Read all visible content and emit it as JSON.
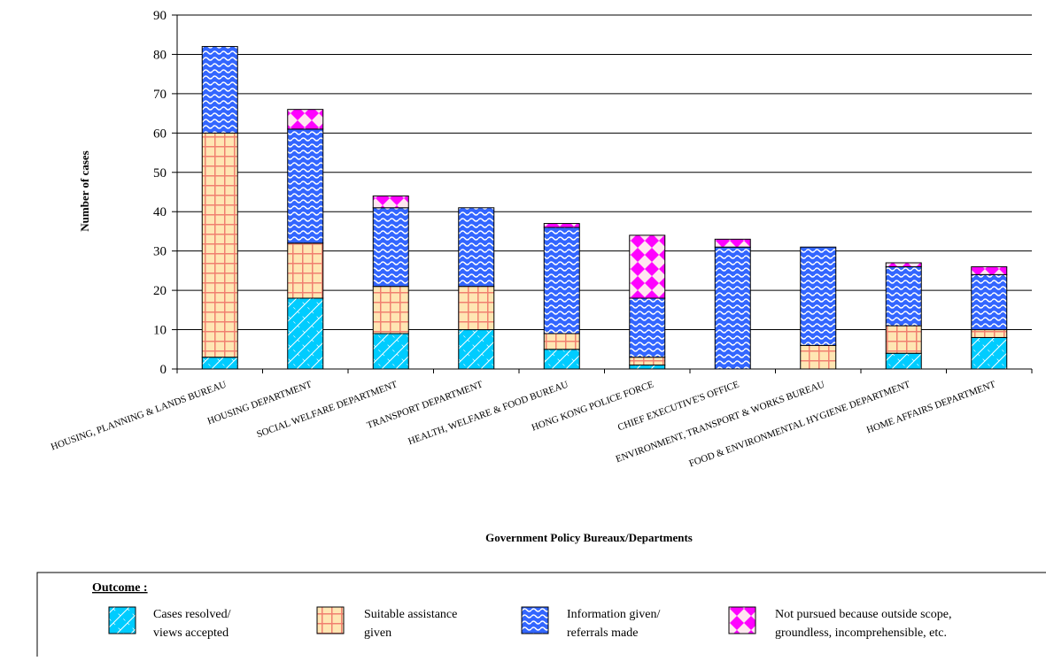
{
  "chart_data": {
    "type": "bar",
    "stacked": true,
    "xlabel": "Government Policy Bureaux/Departments",
    "ylabel": "Number of cases",
    "ylim": [
      0,
      90
    ],
    "yticks": [
      0,
      10,
      20,
      30,
      40,
      50,
      60,
      70,
      80,
      90
    ],
    "grid": true,
    "legend_position": "bottom",
    "categories": [
      "HOUSING, PLANNING & LANDS BUREAU",
      "HOUSING DEPARTMENT",
      "SOCIAL WELFARE DEPARTMENT",
      "TRANSPORT DEPARTMENT",
      "HEALTH, WELFARE & FOOD BUREAU",
      "HONG KONG POLICE FORCE",
      "CHIEF EXECUTIVE'S OFFICE",
      "ENVIRONMENT, TRANSPORT & WORKS BUREAU",
      "FOOD & ENVIRONMENTAL HYGIENE DEPARTMENT",
      "HOME AFFAIRS DEPARTMENT"
    ],
    "series": [
      {
        "key": "resolved",
        "values": [
          3,
          18,
          9,
          10,
          5,
          1,
          0,
          0,
          4,
          8
        ],
        "color": "#00CCFF"
      },
      {
        "key": "assistance",
        "values": [
          57,
          14,
          12,
          11,
          4,
          2,
          0,
          6,
          7,
          2
        ],
        "color": "#FFE6B3"
      },
      {
        "key": "information",
        "values": [
          22,
          29,
          20,
          20,
          27,
          15,
          31,
          25,
          15,
          14
        ],
        "color": "#3366FF"
      },
      {
        "key": "not_pursued",
        "values": [
          0,
          5,
          3,
          0,
          1,
          16,
          2,
          0,
          1,
          2
        ],
        "color": "#FF00FF"
      }
    ]
  },
  "legend": {
    "heading": "Outcome :",
    "items": [
      {
        "line1": "Cases resolved/",
        "line2": "views accepted"
      },
      {
        "line1": "Suitable assistance",
        "line2": "given"
      },
      {
        "line1": "Information given/",
        "line2": "referrals made"
      },
      {
        "line1": "Not pursued because outside scope,",
        "line2": "groundless, incomprehensible, etc."
      }
    ]
  }
}
